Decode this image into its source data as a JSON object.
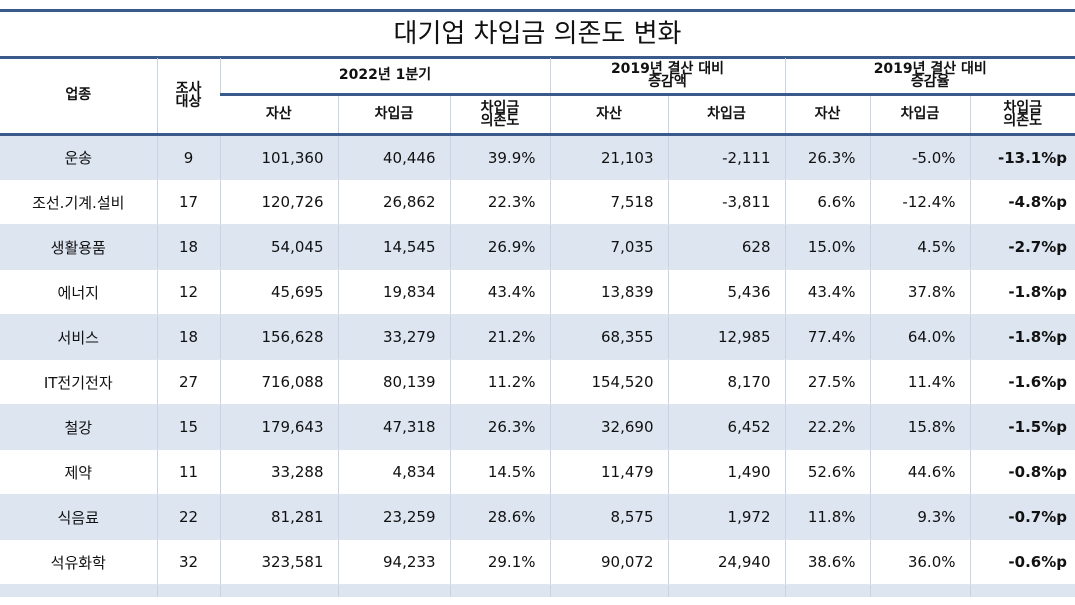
{
  "title": "대기업 차입금 의존도 변화",
  "header": {
    "industry": [
      "업종"
    ],
    "sample": [
      "조사",
      "대상"
    ],
    "groups": [
      {
        "label": [
          "2022년 1분기"
        ],
        "columns": [
          [
            "자산"
          ],
          [
            "차입금"
          ],
          [
            "차입금",
            "의존도"
          ]
        ]
      },
      {
        "label": [
          "2019년 결산 대비",
          "증감액"
        ],
        "columns": [
          [
            "자산"
          ],
          [
            "차입금"
          ]
        ]
      },
      {
        "label": [
          "2019년 결산 대비",
          "증감율"
        ],
        "columns": [
          [
            "자산"
          ],
          [
            "차입금"
          ],
          [
            "차입금",
            "의존도"
          ]
        ]
      }
    ]
  },
  "rows": [
    [
      "운송",
      "9",
      "101,360",
      "40,446",
      "39.9%",
      "21,103",
      "-2,111",
      "26.3%",
      "-5.0%",
      "-13.1%p"
    ],
    [
      "조선.기계.설비",
      "17",
      "120,726",
      "26,862",
      "22.3%",
      "7,518",
      "-3,811",
      "6.6%",
      "-12.4%",
      "-4.8%p"
    ],
    [
      "생활용품",
      "18",
      "54,045",
      "14,545",
      "26.9%",
      "7,035",
      "628",
      "15.0%",
      "4.5%",
      "-2.7%p"
    ],
    [
      "에너지",
      "12",
      "45,695",
      "19,834",
      "43.4%",
      "13,839",
      "5,436",
      "43.4%",
      "37.8%",
      "-1.8%p"
    ],
    [
      "서비스",
      "18",
      "156,628",
      "33,279",
      "21.2%",
      "68,355",
      "12,985",
      "77.4%",
      "64.0%",
      "-1.8%p"
    ],
    [
      "IT전기전자",
      "27",
      "716,088",
      "80,139",
      "11.2%",
      "154,520",
      "8,170",
      "27.5%",
      "11.4%",
      "-1.6%p"
    ],
    [
      "철강",
      "15",
      "179,643",
      "47,318",
      "26.3%",
      "32,690",
      "6,452",
      "22.2%",
      "15.8%",
      "-1.5%p"
    ],
    [
      "제약",
      "11",
      "33,288",
      "4,834",
      "14.5%",
      "11,479",
      "1,490",
      "52.6%",
      "44.6%",
      "-0.8%p"
    ],
    [
      "식음료",
      "22",
      "81,281",
      "23,259",
      "28.6%",
      "8,575",
      "1,972",
      "11.8%",
      "9.3%",
      "-0.7%p"
    ],
    [
      "석유화학",
      "32",
      "323,581",
      "94,233",
      "29.1%",
      "90,072",
      "24,940",
      "38.6%",
      "36.0%",
      "-0.6%p"
    ]
  ]
}
